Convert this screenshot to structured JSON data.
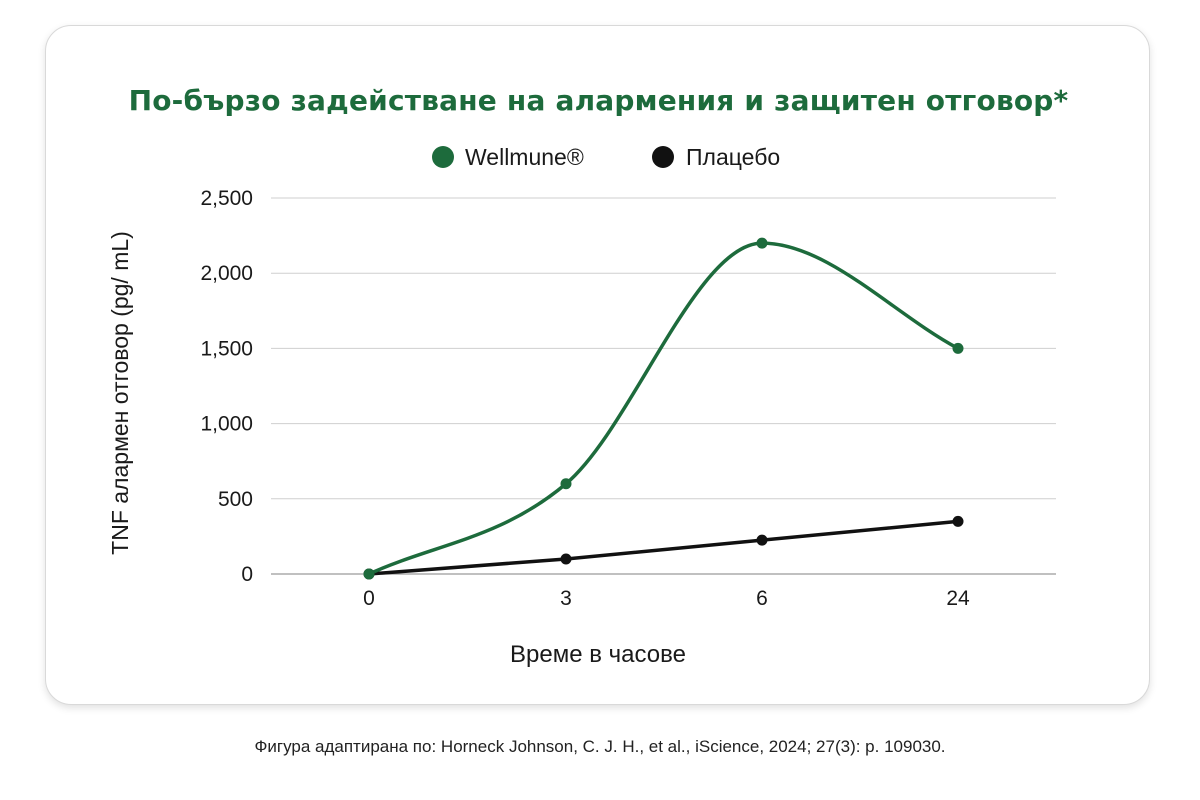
{
  "chart_data": {
    "type": "line",
    "title": "По-бързо задействане на алармения и защитен отговор*",
    "xlabel": "Време в часове",
    "ylabel": "TNF алармен отговор (pg/ mL)",
    "categories": [
      "0",
      "3",
      "6",
      "24"
    ],
    "yticks": [
      "0",
      "500",
      "1,000",
      "1,500",
      "2,000",
      "2,500"
    ],
    "ylim": [
      0,
      2500
    ],
    "grid": true,
    "legend_position": "top-center",
    "series": [
      {
        "name": "Wellmune®",
        "color": "#1d6b3c",
        "smooth": true,
        "values": [
          0,
          600,
          2200,
          1500
        ]
      },
      {
        "name": "Плацебо",
        "color": "#111111",
        "smooth": false,
        "values": [
          0,
          100,
          225,
          350
        ]
      }
    ]
  },
  "caption": "Фигура адаптирана по: Horneck Johnson, C. J. H., et al., iScience, 2024; 27(3): p. 109030."
}
